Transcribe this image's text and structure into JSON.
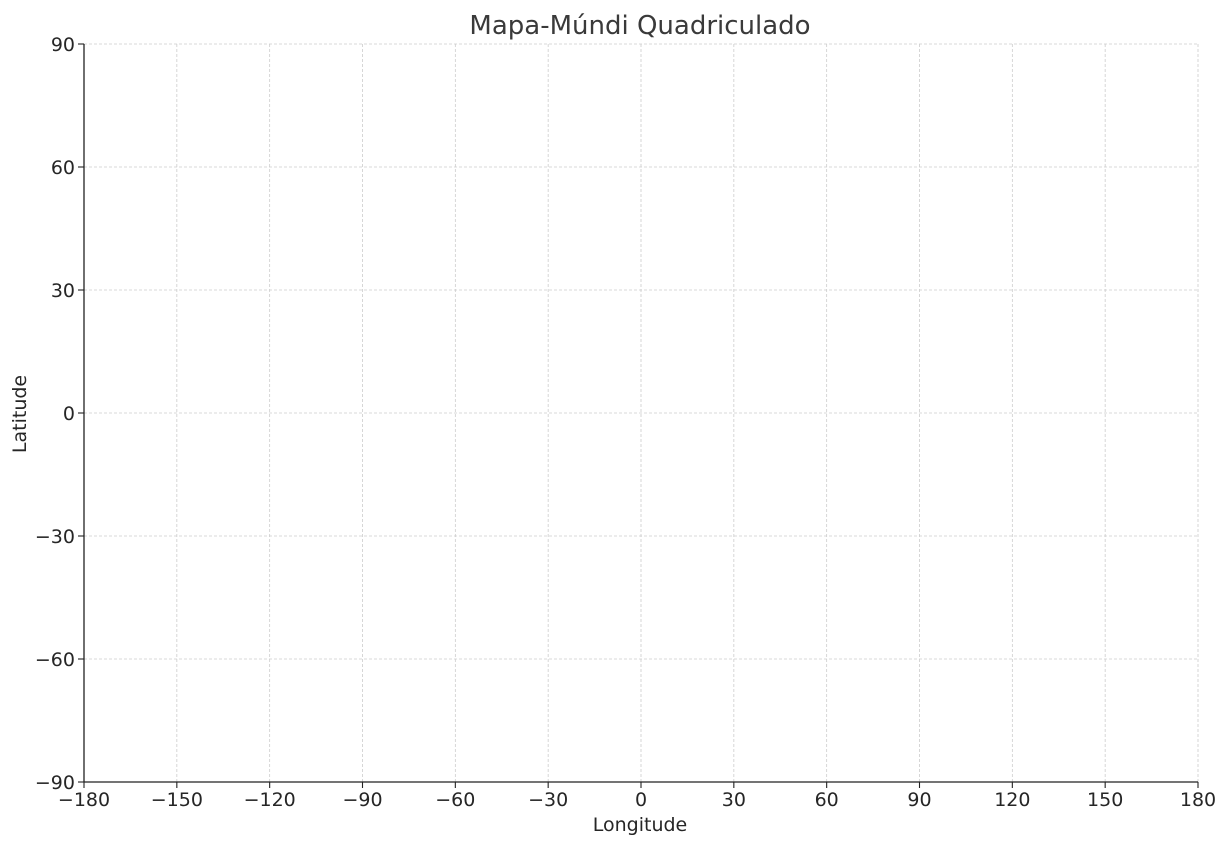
{
  "chart_data": {
    "type": "scatter",
    "title": "Mapa-Múndi Quadriculado",
    "xlabel": "Longitude",
    "ylabel": "Latitude",
    "xlim": [
      -180,
      180
    ],
    "ylim": [
      -90,
      90
    ],
    "x_ticks": [
      -180,
      -150,
      -120,
      -90,
      -60,
      -30,
      0,
      30,
      60,
      90,
      120,
      150,
      180
    ],
    "y_ticks": [
      -90,
      -60,
      -30,
      0,
      30,
      60,
      90
    ],
    "x_tick_labels": [
      "−180",
      "−150",
      "−120",
      "−90",
      "−60",
      "−30",
      "0",
      "30",
      "60",
      "90",
      "120",
      "150",
      "180"
    ],
    "y_tick_labels": [
      "−90",
      "−60",
      "−30",
      "0",
      "30",
      "60",
      "90"
    ],
    "grid": true,
    "series": [],
    "colors": {
      "grid": "#cccccc",
      "axis": "#222222",
      "text": "#262626",
      "title": "#3a3a3a",
      "background": "#ffffff"
    }
  }
}
